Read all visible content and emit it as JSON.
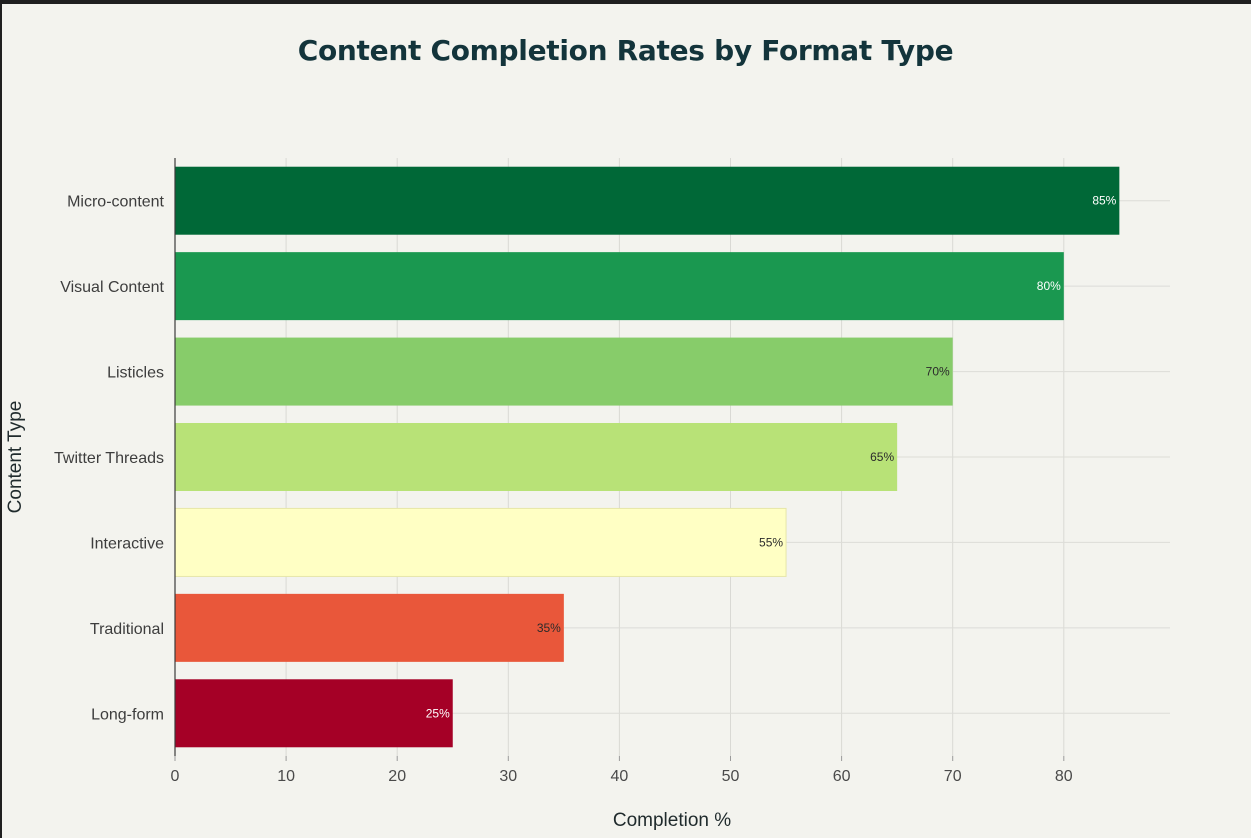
{
  "chart_data": {
    "type": "bar",
    "orientation": "horizontal",
    "title": "Content Completion Rates by Format Type",
    "xlabel": "Completion %",
    "ylabel": "Content Type",
    "xlim": [
      0,
      89
    ],
    "xticks": [
      0,
      10,
      20,
      30,
      40,
      50,
      60,
      70,
      80
    ],
    "grid": true,
    "legend": "none",
    "categories": [
      "Micro-content",
      "Visual Content",
      "Listicles",
      "Twitter Threads",
      "Interactive",
      "Traditional",
      "Long-form"
    ],
    "values": [
      85,
      80,
      70,
      65,
      55,
      35,
      25
    ],
    "data_labels": [
      "85%",
      "80%",
      "70%",
      "65%",
      "55%",
      "35%",
      "25%"
    ],
    "colors": [
      "#006837",
      "#1a9850",
      "#87cc6a",
      "#b8e277",
      "#ffffc4",
      "#e9573a",
      "#a50026"
    ],
    "label_colors": [
      "#ffffff",
      "#ffffff",
      "#2b2b2b",
      "#2b2b2b",
      "#2b2b2b",
      "#2b2b2b",
      "#ffffff"
    ]
  }
}
